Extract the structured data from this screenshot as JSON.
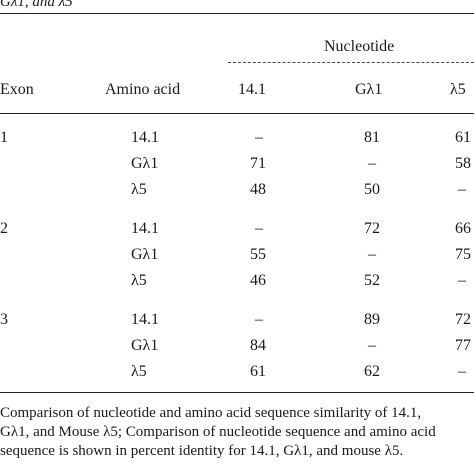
{
  "header_fragment": "Gλ1, and λ5",
  "group_header": "Nucleotide",
  "columns": {
    "exon": "Exon",
    "amino_acid": "Amino acid",
    "c1": "14.1",
    "c2": "Gλ1",
    "c3": "λ5"
  },
  "rows": [
    {
      "exon": "1",
      "aa": "14.1",
      "c1": "–",
      "c2": "81",
      "c3": "61"
    },
    {
      "exon": "",
      "aa": "Gλ1",
      "c1": "71",
      "c2": "–",
      "c3": "58"
    },
    {
      "exon": "",
      "aa": "λ5",
      "c1": "48",
      "c2": "50",
      "c3": "–"
    },
    {
      "exon": "2",
      "aa": "14.1",
      "c1": "–",
      "c2": "72",
      "c3": "66"
    },
    {
      "exon": "",
      "aa": "Gλ1",
      "c1": "55",
      "c2": "–",
      "c3": "75"
    },
    {
      "exon": "",
      "aa": "λ5",
      "c1": "46",
      "c2": "52",
      "c3": "–"
    },
    {
      "exon": "3",
      "aa": "14.1",
      "c1": "–",
      "c2": "89",
      "c3": "72"
    },
    {
      "exon": "",
      "aa": "Gλ1",
      "c1": "84",
      "c2": "–",
      "c3": "77"
    },
    {
      "exon": "",
      "aa": "λ5",
      "c1": "61",
      "c2": "62",
      "c3": "–"
    }
  ],
  "footnote": [
    "Comparison of nucleotide and amino acid sequence similarity of 14.1,",
    "Gλ1, and Mouse λ5; Comparison of nucleotide sequence and amino acid",
    "sequence is shown in percent identity for 14.1, Gλ1, and mouse λ5."
  ]
}
